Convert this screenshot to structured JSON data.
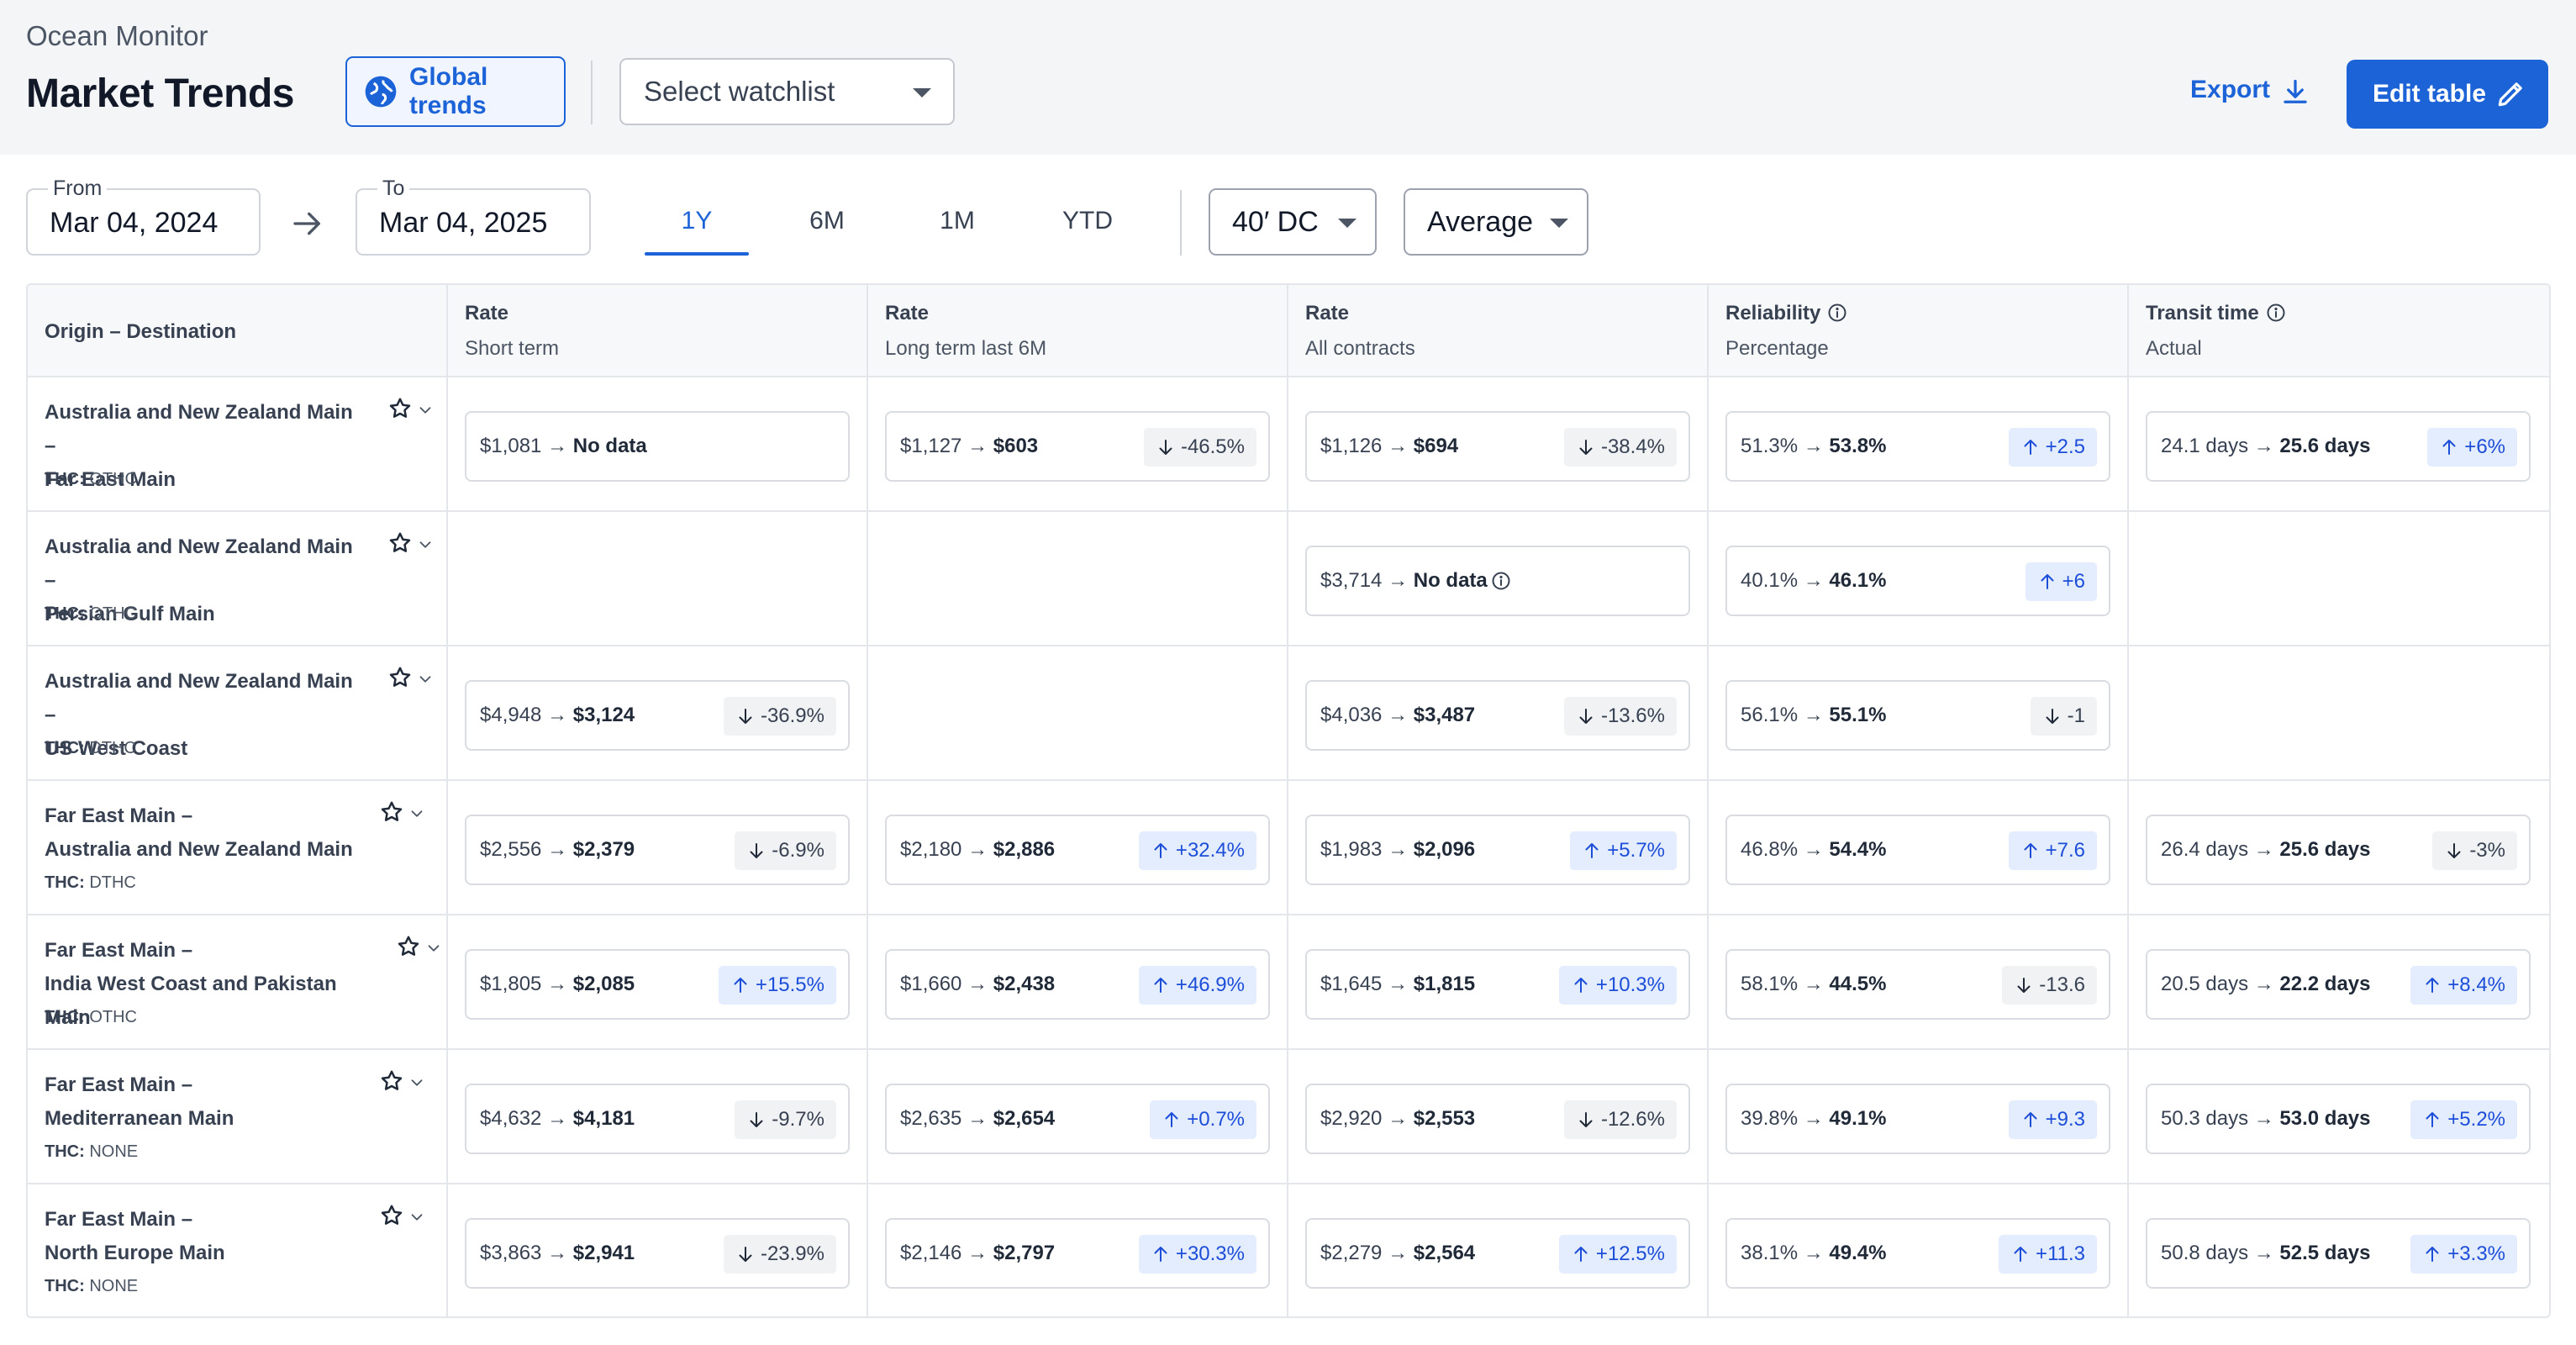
{
  "header": {
    "app_name": "Ocean Monitor",
    "title": "Market Trends",
    "global_trends_label": "Global trends",
    "watchlist_placeholder": "Select watchlist",
    "export_label": "Export",
    "edit_table_label": "Edit table"
  },
  "filters": {
    "from_label": "From",
    "from_value": "Mar 04, 2024",
    "to_label": "To",
    "to_value": "Mar 04, 2025",
    "periods": [
      "1Y",
      "6M",
      "1M",
      "YTD"
    ],
    "active_period": "1Y",
    "container": "40′ DC",
    "aggregation": "Average"
  },
  "table": {
    "columns": [
      {
        "title": "Origin – Destination",
        "sub": ""
      },
      {
        "title": "Rate",
        "sub": "Short term"
      },
      {
        "title": "Rate",
        "sub": "Long term last 6M"
      },
      {
        "title": "Rate",
        "sub": "All contracts"
      },
      {
        "title": "Reliability",
        "sub": "Percentage",
        "info": true
      },
      {
        "title": "Transit time",
        "sub": "Actual",
        "info": true
      }
    ],
    "thc_label": "THC:",
    "rows": [
      {
        "route_line1": "Australia and New Zealand Main –",
        "route_line2": "Far East Main",
        "thc": "OTHC",
        "cells": [
          {
            "from": "$1,081",
            "to": "No data"
          },
          {
            "from": "$1,127",
            "to": "$603",
            "change": "-46.5%",
            "dir": "down"
          },
          {
            "from": "$1,126",
            "to": "$694",
            "change": "-38.4%",
            "dir": "down"
          },
          {
            "from": "51.3%",
            "to": "53.8%",
            "change": "+2.5",
            "dir": "up"
          },
          {
            "from": "24.1 days",
            "to": "25.6 days",
            "change": "+6%",
            "dir": "up"
          }
        ]
      },
      {
        "route_line1": "Australia and New Zealand Main –",
        "route_line2": "Persian Gulf Main",
        "thc": "OTHC",
        "cells": [
          null,
          null,
          {
            "from": "$3,714",
            "to": "No data",
            "info": true
          },
          {
            "from": "40.1%",
            "to": "46.1%",
            "change": "+6",
            "dir": "up"
          },
          null
        ]
      },
      {
        "route_line1": "Australia and New Zealand Main –",
        "route_line2": "US West Coast",
        "thc": "DTHC",
        "cells": [
          {
            "from": "$4,948",
            "to": "$3,124",
            "change": "-36.9%",
            "dir": "down"
          },
          null,
          {
            "from": "$4,036",
            "to": "$3,487",
            "change": "-13.6%",
            "dir": "down"
          },
          {
            "from": "56.1%",
            "to": "55.1%",
            "change": "-1",
            "dir": "down"
          },
          null
        ]
      },
      {
        "route_line1": "Far East Main –",
        "route_line2": "Australia and New Zealand Main",
        "thc": "DTHC",
        "cells": [
          {
            "from": "$2,556",
            "to": "$2,379",
            "change": "-6.9%",
            "dir": "down"
          },
          {
            "from": "$2,180",
            "to": "$2,886",
            "change": "+32.4%",
            "dir": "up"
          },
          {
            "from": "$1,983",
            "to": "$2,096",
            "change": "+5.7%",
            "dir": "up"
          },
          {
            "from": "46.8%",
            "to": "54.4%",
            "change": "+7.6",
            "dir": "up"
          },
          {
            "from": "26.4 days",
            "to": "25.6 days",
            "change": "-3%",
            "dir": "down"
          }
        ]
      },
      {
        "route_line1": "Far East Main –",
        "route_line2": "India West Coast and Pakistan Main",
        "thc": "OTHC",
        "cells": [
          {
            "from": "$1,805",
            "to": "$2,085",
            "change": "+15.5%",
            "dir": "up"
          },
          {
            "from": "$1,660",
            "to": "$2,438",
            "change": "+46.9%",
            "dir": "up"
          },
          {
            "from": "$1,645",
            "to": "$1,815",
            "change": "+10.3%",
            "dir": "up"
          },
          {
            "from": "58.1%",
            "to": "44.5%",
            "change": "-13.6",
            "dir": "down"
          },
          {
            "from": "20.5 days",
            "to": "22.2 days",
            "change": "+8.4%",
            "dir": "up"
          }
        ]
      },
      {
        "route_line1": "Far East Main –",
        "route_line2": "Mediterranean Main",
        "thc": "NONE",
        "cells": [
          {
            "from": "$4,632",
            "to": "$4,181",
            "change": "-9.7%",
            "dir": "down"
          },
          {
            "from": "$2,635",
            "to": "$2,654",
            "change": "+0.7%",
            "dir": "up"
          },
          {
            "from": "$2,920",
            "to": "$2,553",
            "change": "-12.6%",
            "dir": "down"
          },
          {
            "from": "39.8%",
            "to": "49.1%",
            "change": "+9.3",
            "dir": "up"
          },
          {
            "from": "50.3 days",
            "to": "53.0 days",
            "change": "+5.2%",
            "dir": "up"
          }
        ]
      },
      {
        "route_line1": "Far East Main –",
        "route_line2": "North Europe Main",
        "thc": "NONE",
        "cells": [
          {
            "from": "$3,863",
            "to": "$2,941",
            "change": "-23.9%",
            "dir": "down"
          },
          {
            "from": "$2,146",
            "to": "$2,797",
            "change": "+30.3%",
            "dir": "up"
          },
          {
            "from": "$2,279",
            "to": "$2,564",
            "change": "+12.5%",
            "dir": "up"
          },
          {
            "from": "38.1%",
            "to": "49.4%",
            "change": "+11.3",
            "dir": "up"
          },
          {
            "from": "50.8 days",
            "to": "52.5 days",
            "change": "+3.3%",
            "dir": "up"
          }
        ]
      }
    ]
  },
  "colors": {
    "accent": "#1d63d8",
    "chip_up_bg": "#e4edfe",
    "chip_down_bg": "#f1f2f4"
  },
  "icons": {
    "global": "globe-icon",
    "export": "download-icon",
    "edit": "pencil-icon",
    "arrow": "arrow-right-icon",
    "favorite": "star-icon",
    "expand": "chevron-down-icon",
    "up": "arrow-up-icon",
    "down": "arrow-down-icon",
    "info": "info-icon"
  }
}
